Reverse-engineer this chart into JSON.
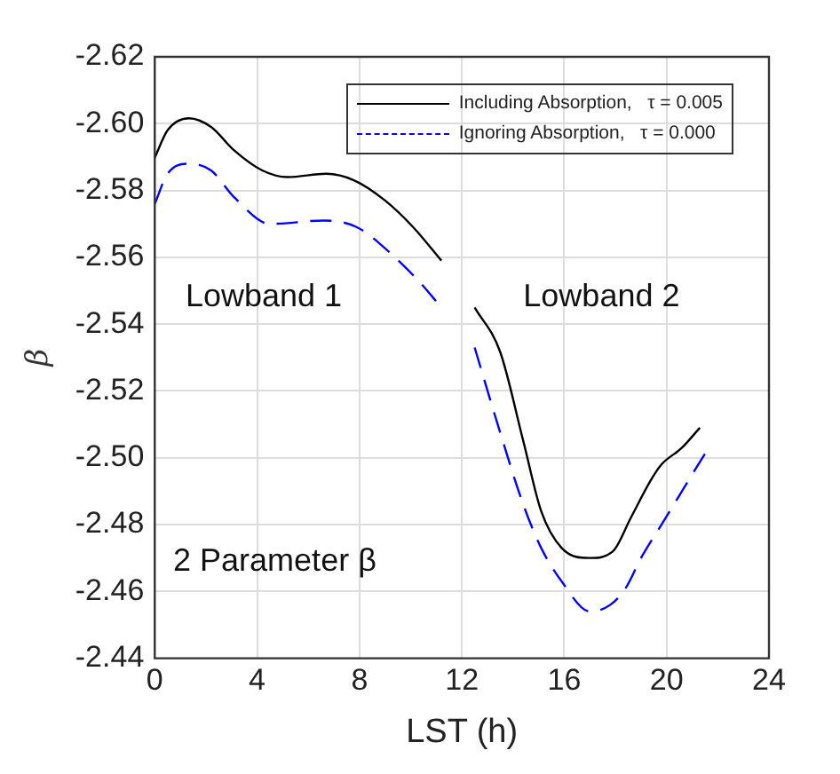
{
  "chart_data": {
    "type": "line",
    "xlabel": "LST (h)",
    "ylabel": "β",
    "series": [
      {
        "name": "Including Absorption,   τ = 0.005",
        "color": "#000000",
        "line_style": "solid",
        "x": [
          0,
          0.5,
          1.34,
          2.2,
          3.1,
          4.2,
          5.2,
          6.7,
          7.8,
          9.0,
          10.1,
          11.2,
          12,
          12.5,
          13.5,
          14.4,
          15.1,
          15.9,
          17.0,
          17.9,
          18.6,
          19.4,
          19.8,
          20.6,
          21.3
        ],
        "values": [
          -2.5898,
          -2.598,
          -2.6016,
          -2.599,
          -2.592,
          -2.586,
          -2.584,
          -2.585,
          -2.583,
          -2.577,
          -2.569,
          -2.559,
          null,
          -2.545,
          -2.5316,
          -2.505,
          -2.484,
          -2.473,
          -2.47,
          -2.472,
          -2.482,
          -2.4935,
          -2.498,
          -2.503,
          -2.509
        ]
      },
      {
        "name": "Ignoring Absorption,   τ = 0.000",
        "color": "#0000ff",
        "line_style": "dashed",
        "x": [
          0,
          0.5,
          1.34,
          2.2,
          3.1,
          4.5,
          6.6,
          7.9,
          9.1,
          10.3,
          11.2,
          12,
          12.5,
          13.4,
          14.4,
          15.1,
          15.9,
          17.0,
          17.8,
          18.4,
          19.0,
          19.8,
          20.6,
          21.6
        ],
        "values": [
          -2.576,
          -2.585,
          -2.588,
          -2.586,
          -2.578,
          -2.57,
          -2.571,
          -2.569,
          -2.562,
          -2.553,
          -2.545,
          null,
          -2.533,
          -2.51,
          -2.486,
          -2.473,
          -2.463,
          -2.454,
          -2.456,
          -2.461,
          -2.47,
          -2.48,
          -2.49,
          -2.5025
        ]
      }
    ],
    "xlim": [
      0,
      24
    ],
    "xticks": [
      0,
      4,
      8,
      12,
      16,
      20,
      24
    ],
    "ylim": [
      -2.44,
      -2.62
    ],
    "yticks": [
      {
        "value": -2.62,
        "label": "-2.62"
      },
      {
        "value": -2.6,
        "label": "-2.60"
      },
      {
        "value": -2.58,
        "label": "-2.58"
      },
      {
        "value": -2.56,
        "label": "-2.56"
      },
      {
        "value": -2.54,
        "label": "-2.54"
      },
      {
        "value": -2.52,
        "label": "-2.52"
      },
      {
        "value": -2.5,
        "label": "-2.50"
      },
      {
        "value": -2.48,
        "label": "-2.48"
      },
      {
        "value": -2.46,
        "label": "-2.46"
      },
      {
        "value": -2.44,
        "label": "-2.44"
      }
    ],
    "annotations": [
      "Lowband 1",
      "Lowband 2",
      "2 Parameter β"
    ],
    "grid": true,
    "legend": "top right",
    "marker": "none"
  }
}
